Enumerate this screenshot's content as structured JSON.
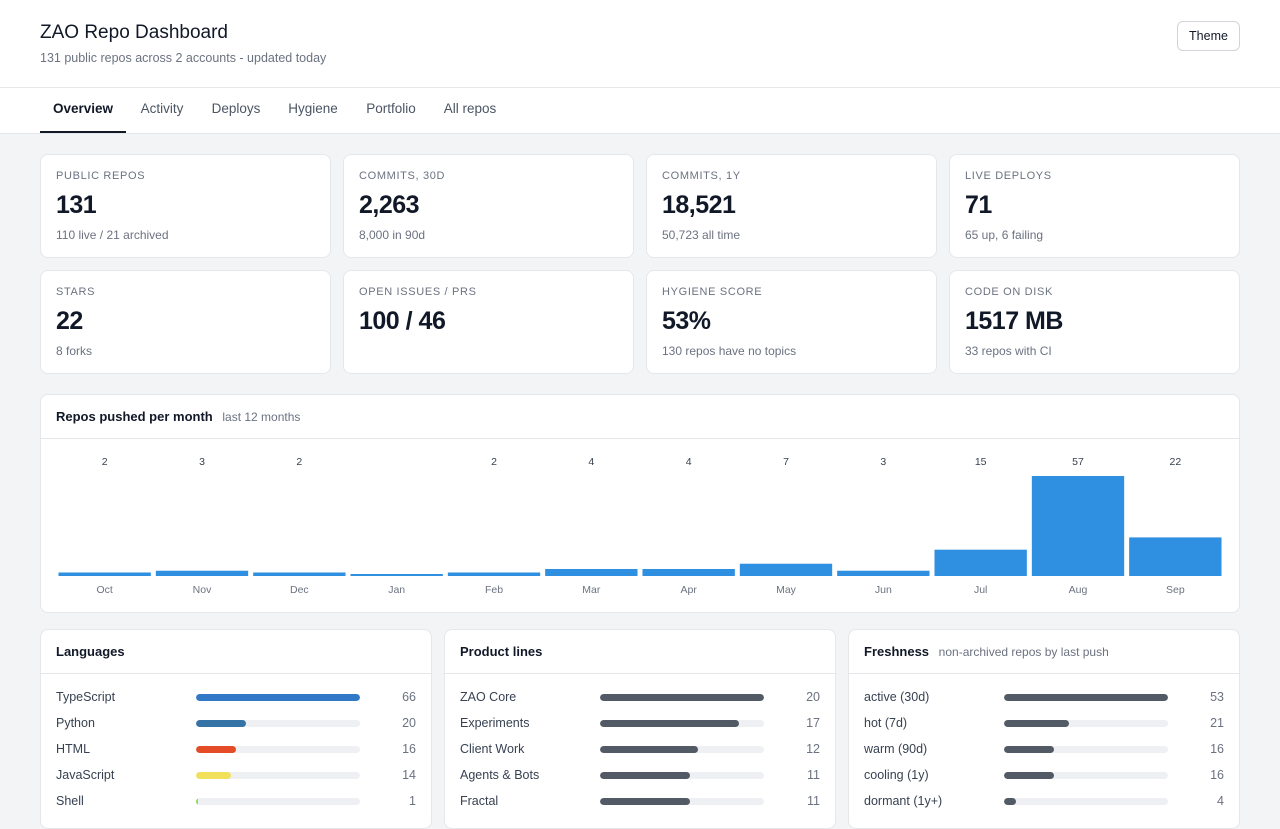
{
  "header": {
    "title": "ZAO Repo Dashboard",
    "subtitle": "131 public repos across 2 accounts - updated today",
    "theme_label": "Theme"
  },
  "tabs": [
    {
      "label": "Overview",
      "active": true
    },
    {
      "label": "Activity"
    },
    {
      "label": "Deploys"
    },
    {
      "label": "Hygiene"
    },
    {
      "label": "Portfolio"
    },
    {
      "label": "All repos"
    }
  ],
  "stats": [
    {
      "label": "PUBLIC REPOS",
      "value": "131",
      "sub": "110 live / 21 archived"
    },
    {
      "label": "COMMITS, 30D",
      "value": "2,263",
      "sub": "8,000 in 90d"
    },
    {
      "label": "COMMITS, 1Y",
      "value": "18,521",
      "sub": "50,723 all time"
    },
    {
      "label": "LIVE DEPLOYS",
      "value": "71",
      "sub": "65 up, 6 failing"
    },
    {
      "label": "STARS",
      "value": "22",
      "sub": "8 forks"
    },
    {
      "label": "OPEN ISSUES / PRS",
      "value": "100 / 46",
      "sub": ""
    },
    {
      "label": "HYGIENE SCORE",
      "value": "53%",
      "sub": "130 repos have no topics"
    },
    {
      "label": "CODE ON DISK",
      "value": "1517 MB",
      "sub": "33 repos with CI"
    }
  ],
  "chart_panel": {
    "title": "Repos pushed per month",
    "note": "last 12 months"
  },
  "chart_data": {
    "type": "bar",
    "categories": [
      "Oct",
      "Nov",
      "Dec",
      "Jan",
      "Feb",
      "Mar",
      "Apr",
      "May",
      "Jun",
      "Jul",
      "Aug",
      "Sep"
    ],
    "values": [
      2,
      3,
      2,
      1,
      2,
      4,
      4,
      7,
      3,
      15,
      57,
      22
    ],
    "labels": [
      "2",
      "3",
      "2",
      "",
      "2",
      "4",
      "4",
      "7",
      "3",
      "15",
      "57",
      "22"
    ],
    "bar_color": "#2f8fe0",
    "title": "Repos pushed per month"
  },
  "languages": {
    "title": "Languages",
    "max": 66,
    "items": [
      {
        "label": "TypeScript",
        "value": 66,
        "count": "66",
        "color": "#3178c6"
      },
      {
        "label": "Python",
        "value": 20,
        "count": "20",
        "color": "#3572a5"
      },
      {
        "label": "HTML",
        "value": 16,
        "count": "16",
        "color": "#e34c26"
      },
      {
        "label": "JavaScript",
        "value": 14,
        "count": "14",
        "color": "#f1e05a"
      },
      {
        "label": "Shell",
        "value": 1,
        "count": "1",
        "color": "#89e051"
      }
    ]
  },
  "product_lines": {
    "title": "Product lines",
    "max": 20,
    "items": [
      {
        "label": "ZAO Core",
        "value": 20,
        "count": "20",
        "color": "#525a66"
      },
      {
        "label": "Experiments",
        "value": 17,
        "count": "17",
        "color": "#525a66"
      },
      {
        "label": "Client Work",
        "value": 12,
        "count": "12",
        "color": "#525a66"
      },
      {
        "label": "Agents & Bots",
        "value": 11,
        "count": "11",
        "color": "#525a66"
      },
      {
        "label": "Fractal",
        "value": 11,
        "count": "11",
        "color": "#525a66"
      }
    ]
  },
  "freshness": {
    "title": "Freshness",
    "note": "non-archived repos by last push",
    "max": 53,
    "items": [
      {
        "label": "active (30d)",
        "value": 53,
        "count": "53",
        "color": "#525a66"
      },
      {
        "label": "hot (7d)",
        "value": 21,
        "count": "21",
        "color": "#525a66"
      },
      {
        "label": "warm (90d)",
        "value": 16,
        "count": "16",
        "color": "#525a66"
      },
      {
        "label": "cooling (1y)",
        "value": 16,
        "count": "16",
        "color": "#525a66"
      },
      {
        "label": "dormant (1y+)",
        "value": 4,
        "count": "4",
        "color": "#525a66"
      }
    ]
  }
}
